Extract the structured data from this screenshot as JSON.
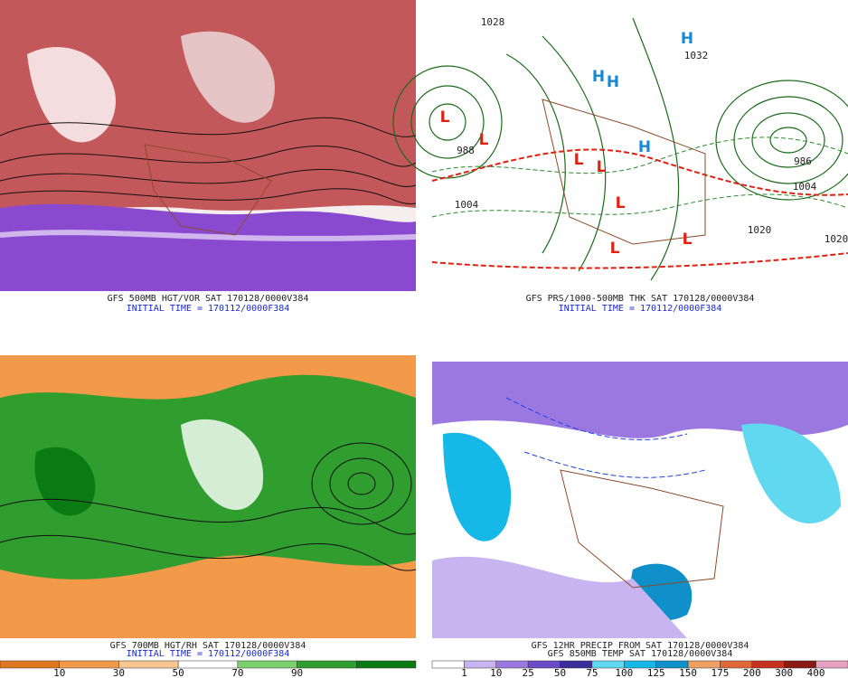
{
  "panels": [
    {
      "captions": [
        "GFS 500MB HGT/VOR SAT 170128/0000V384",
        "INITIAL TIME = 170112/0000F384"
      ]
    },
    {
      "captions": [
        "GFS PRS/1000-500MB THK SAT 170128/0000V384",
        "INITIAL TIME = 170112/0000F384"
      ],
      "map_labels": [
        "L",
        "L",
        "L",
        "L",
        "L",
        "L",
        "L",
        "H",
        "H",
        "H",
        "H",
        "988",
        "986",
        "1004",
        "1004",
        "1020",
        "1020",
        "1028",
        "1032"
      ]
    },
    {
      "captions": [
        "GFS 700MB HGT/RH SAT 170128/0000V384",
        "INITIAL TIME = 170112/0000F384"
      ],
      "legend": {
        "labels": [
          "10",
          "30",
          "50",
          "70",
          "90"
        ],
        "colors": [
          "#e07820",
          "#f19a4c",
          "#f8c68e",
          "#ffffff",
          "#7ad06a",
          "#2f9e2f",
          "#0a7a12"
        ]
      }
    },
    {
      "captions": [
        "GFS 12HR PRECIP FROM SAT 170128/0000V384",
        "GFS 850MB TEMP SAT 170128/0000V384"
      ],
      "legend": {
        "labels": [
          "1",
          "10",
          "25",
          "50",
          "75",
          "100",
          "125",
          "150",
          "175",
          "200",
          "300",
          "400"
        ],
        "colors": [
          "#ffffff",
          "#c8b4f0",
          "#9b78e0",
          "#6a4cc8",
          "#3a2e9a",
          "#5fd8f0",
          "#16b8e8",
          "#1090c8",
          "#f0a060",
          "#e06838",
          "#c83020",
          "#8a1a14",
          "#e8a0c0"
        ]
      }
    }
  ]
}
